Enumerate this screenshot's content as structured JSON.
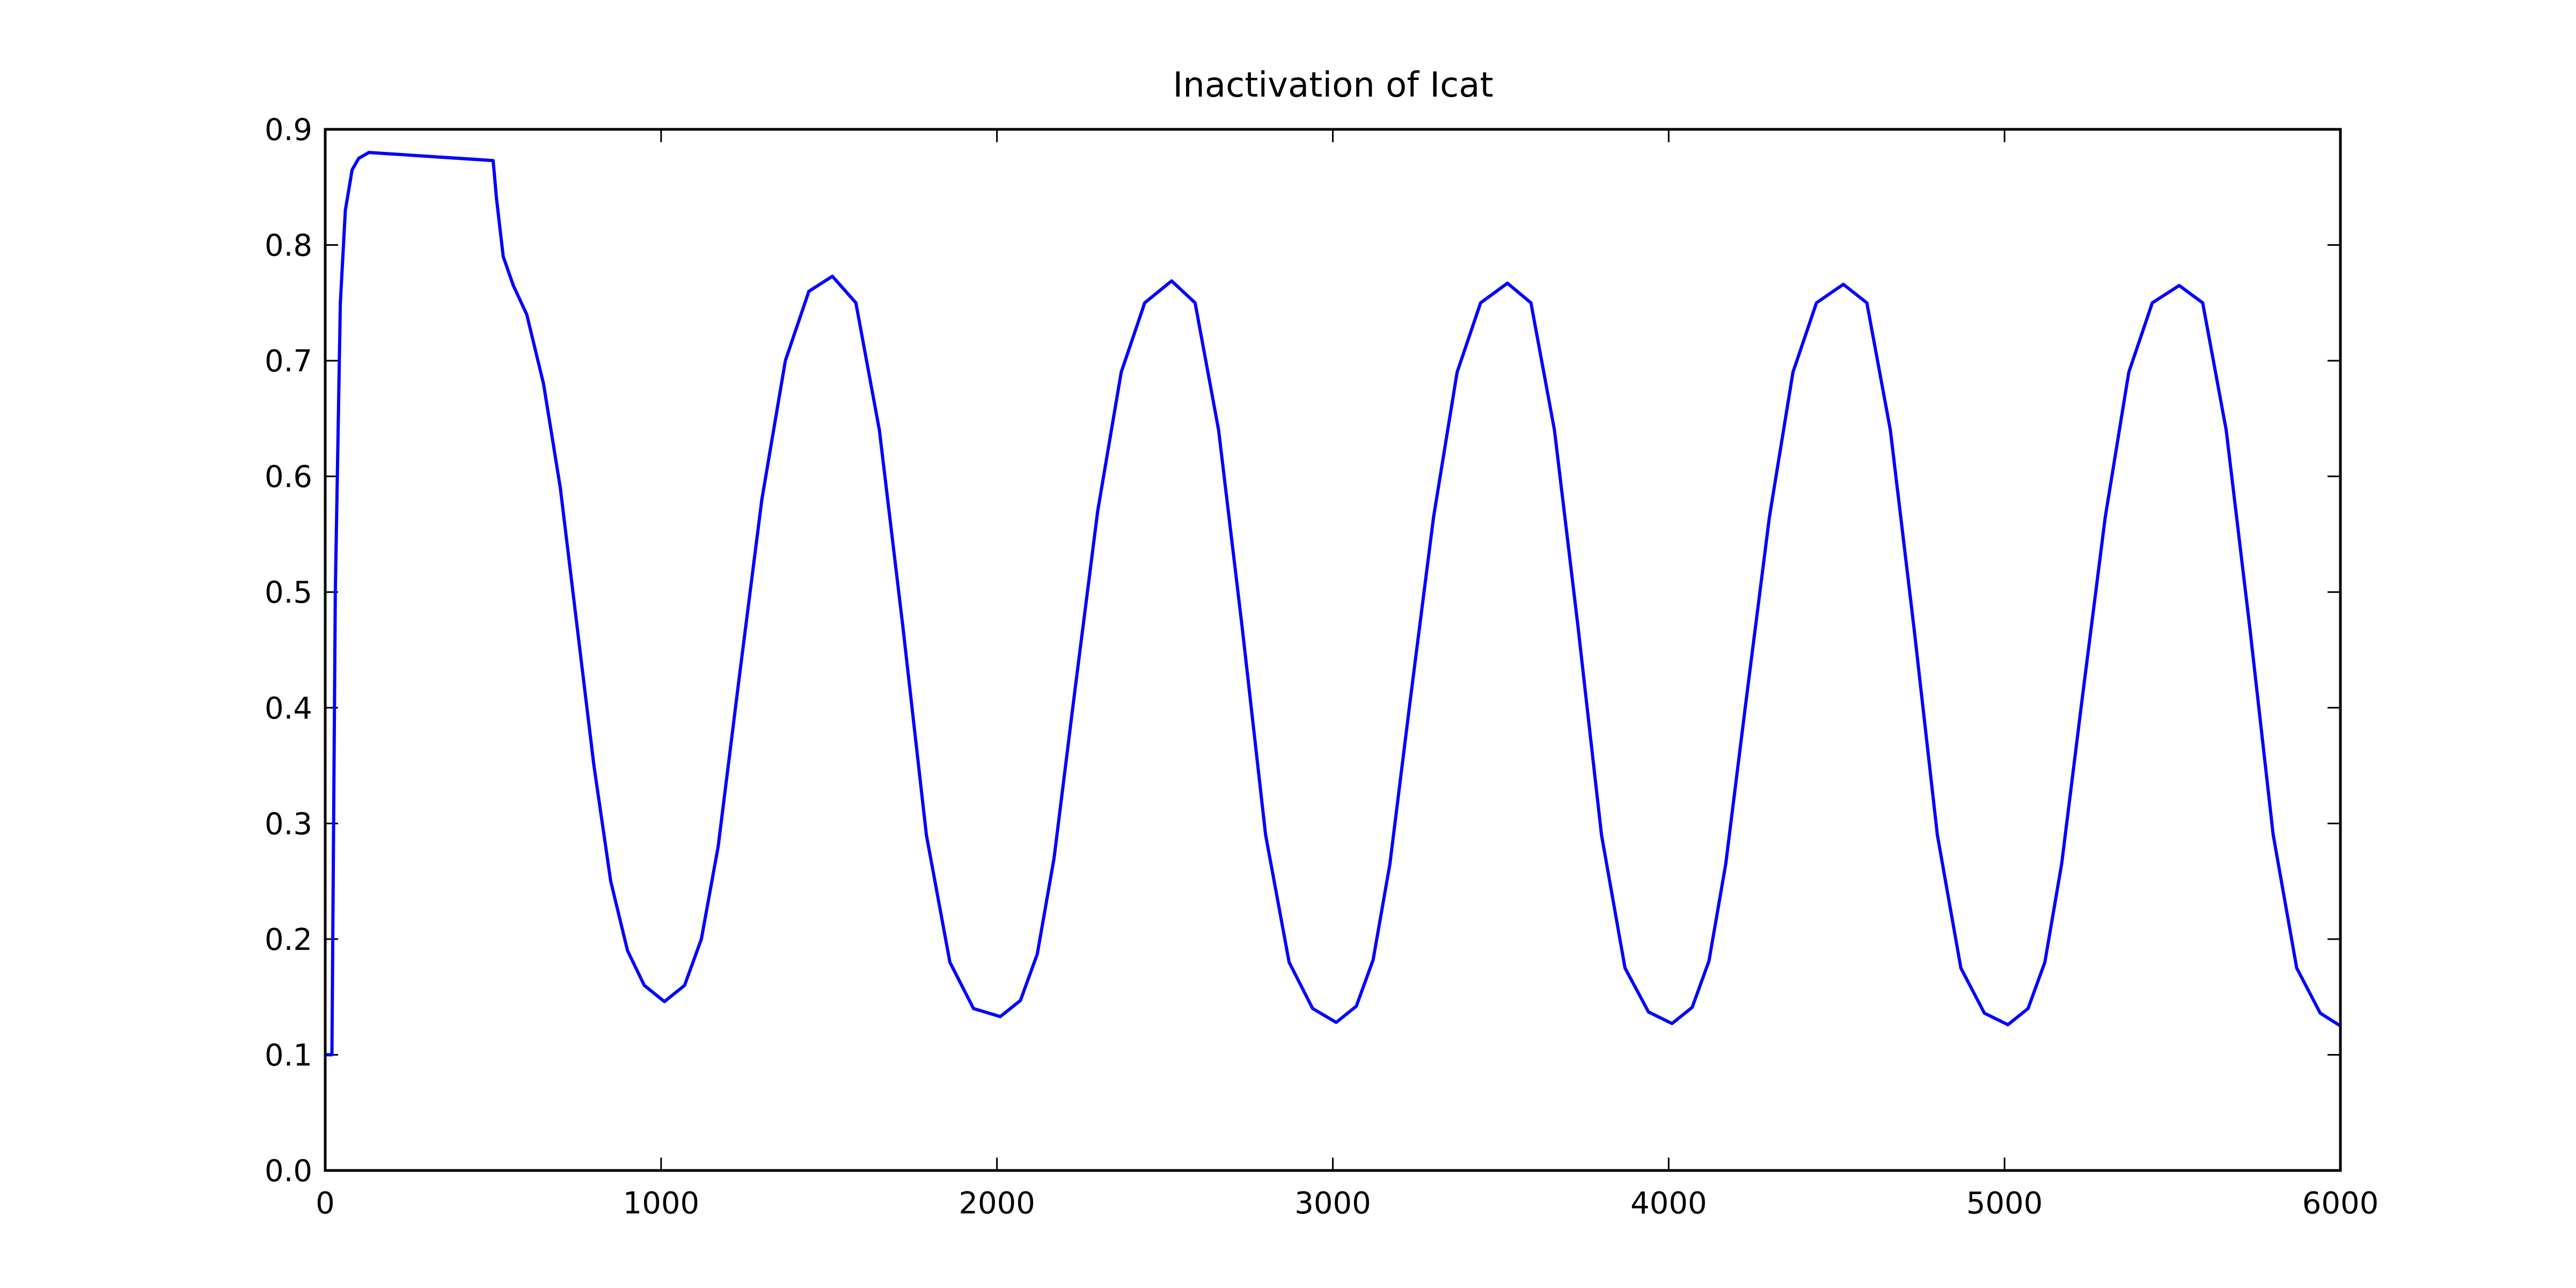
{
  "chart_data": {
    "type": "line",
    "title": "Inactivation of Icat",
    "x": [
      0,
      20,
      30,
      45,
      60,
      80,
      100,
      130,
      500,
      510,
      530,
      560,
      600,
      650,
      700,
      750,
      800,
      850,
      900,
      950,
      1010,
      1070,
      1120,
      1170,
      1230,
      1300,
      1370,
      1440,
      1510,
      1580,
      1650,
      1720,
      1790,
      1860,
      1930,
      2010,
      2070,
      2120,
      2170,
      2230,
      2300,
      2370,
      2440,
      2520,
      2590,
      2660,
      2730,
      2800,
      2870,
      2940,
      3010,
      3070,
      3120,
      3170,
      3230,
      3300,
      3370,
      3440,
      3520,
      3590,
      3660,
      3730,
      3800,
      3870,
      3940,
      4010,
      4070,
      4120,
      4170,
      4230,
      4300,
      4370,
      4440,
      4520,
      4590,
      4660,
      4730,
      4800,
      4870,
      4940,
      5010,
      5070,
      5120,
      5170,
      5230,
      5300,
      5370,
      5440,
      5520,
      5590,
      5660,
      5730,
      5800,
      5870,
      5940,
      6000
    ],
    "series": [
      {
        "color": "#0000ff",
        "values": [
          0.1,
          0.1,
          0.5,
          0.75,
          0.83,
          0.865,
          0.875,
          0.88,
          0.873,
          0.84,
          0.79,
          0.765,
          0.74,
          0.68,
          0.59,
          0.47,
          0.35,
          0.25,
          0.19,
          0.16,
          0.146,
          0.16,
          0.2,
          0.28,
          0.42,
          0.58,
          0.7,
          0.76,
          0.773,
          0.75,
          0.64,
          0.47,
          0.29,
          0.18,
          0.14,
          0.133,
          0.147,
          0.187,
          0.27,
          0.41,
          0.57,
          0.69,
          0.75,
          0.769,
          0.75,
          0.64,
          0.47,
          0.29,
          0.18,
          0.14,
          0.128,
          0.142,
          0.182,
          0.265,
          0.405,
          0.565,
          0.69,
          0.75,
          0.767,
          0.75,
          0.64,
          0.47,
          0.29,
          0.175,
          0.137,
          0.127,
          0.141,
          0.181,
          0.265,
          0.405,
          0.565,
          0.69,
          0.75,
          0.766,
          0.75,
          0.64,
          0.47,
          0.29,
          0.175,
          0.136,
          0.126,
          0.14,
          0.18,
          0.265,
          0.405,
          0.565,
          0.69,
          0.75,
          0.765,
          0.75,
          0.64,
          0.47,
          0.29,
          0.175,
          0.136,
          0.125
        ]
      }
    ],
    "xlim": [
      0,
      6000
    ],
    "xticks": [
      0,
      1000,
      2000,
      3000,
      4000,
      5000,
      6000
    ],
    "ylim": [
      0,
      0.9
    ],
    "yticks": [
      {
        "value": 0,
        "label": "0.0"
      },
      0.1,
      0.2,
      0.3,
      0.4,
      0.5,
      0.6,
      0.7,
      0.8,
      0.9
    ]
  }
}
